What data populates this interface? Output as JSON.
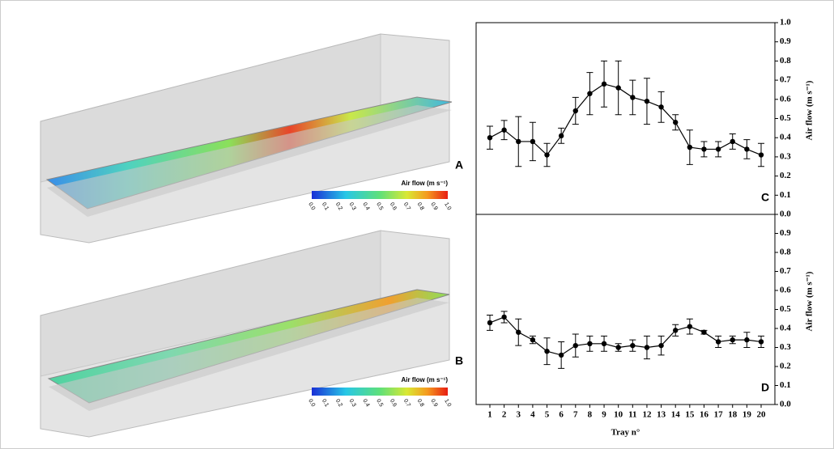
{
  "renders": [
    {
      "label": "A",
      "colorbar_title": "Air flow (m s⁻¹)",
      "colorbar_ticks": [
        "0.0",
        "0.1",
        "0.2",
        "0.3",
        "0.4",
        "0.5",
        "0.6",
        "0.7",
        "0.8",
        "0.9",
        "1.0"
      ]
    },
    {
      "label": "B",
      "colorbar_title": "Air flow (m s⁻¹)",
      "colorbar_ticks": [
        "0.0",
        "0.1",
        "0.2",
        "0.3",
        "0.4",
        "0.5",
        "0.6",
        "0.7",
        "0.8",
        "0.9",
        "1.0"
      ]
    }
  ],
  "chart_data": [
    {
      "type": "line",
      "label": "C",
      "ylabel": "Air flow (m s⁻¹)",
      "color": "#000000",
      "ylim": [
        0,
        1
      ],
      "yticks": [
        {
          "value": 0,
          "label": "0.0"
        },
        0.1,
        0.2,
        0.3,
        0.4,
        0.5,
        0.6,
        0.7,
        0.8,
        0.9,
        {
          "value": 1,
          "label": "1.0"
        }
      ],
      "values": [
        0.4,
        0.44,
        0.38,
        0.38,
        0.31,
        0.41,
        0.54,
        0.63,
        0.68,
        0.66,
        0.61,
        0.59,
        0.56,
        0.48,
        0.35,
        0.34,
        0.34,
        0.38,
        0.34,
        0.31
      ],
      "errors": [
        0.06,
        0.05,
        0.13,
        0.1,
        0.06,
        0.04,
        0.07,
        0.11,
        0.12,
        0.14,
        0.09,
        0.12,
        0.08,
        0.04,
        0.09,
        0.04,
        0.04,
        0.04,
        0.05,
        0.06
      ]
    },
    {
      "type": "line",
      "label": "D",
      "ylabel": "Air flow (m s⁻¹)",
      "xlabel": "Tray n°",
      "color": "#000000",
      "categories": [
        "1",
        "2",
        "3",
        "4",
        "5",
        "6",
        "7",
        "8",
        "9",
        "10",
        "11",
        "12",
        "13",
        "14",
        "15",
        "16",
        "17",
        "18",
        "19",
        "20"
      ],
      "ylim": [
        0,
        1
      ],
      "yticks": [
        {
          "value": 0,
          "label": "0.0"
        },
        0.1,
        0.2,
        0.3,
        0.4,
        0.5,
        0.6,
        0.7,
        0.8,
        0.9
      ],
      "values": [
        0.43,
        0.46,
        0.38,
        0.34,
        0.28,
        0.26,
        0.31,
        0.32,
        0.32,
        0.3,
        0.31,
        0.3,
        0.31,
        0.39,
        0.41,
        0.38,
        0.33,
        0.34,
        0.34,
        0.33
      ],
      "errors": [
        0.04,
        0.03,
        0.07,
        0.02,
        0.07,
        0.07,
        0.06,
        0.04,
        0.04,
        0.02,
        0.03,
        0.06,
        0.05,
        0.03,
        0.04,
        0.01,
        0.03,
        0.02,
        0.04,
        0.03
      ]
    }
  ]
}
